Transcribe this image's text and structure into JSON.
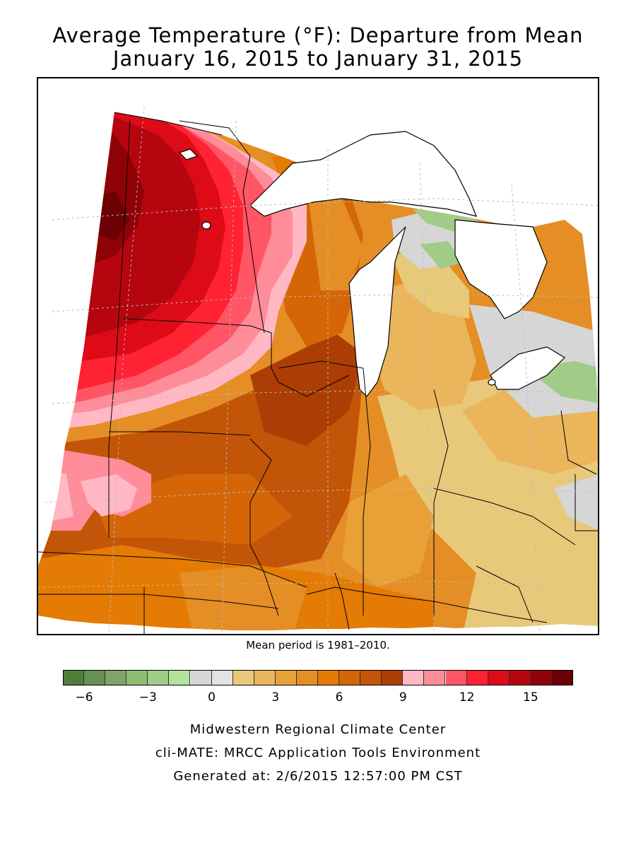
{
  "title_line1": "Average Temperature (°F): Departure from Mean",
  "title_line2": "January 16, 2015 to January 31, 2015",
  "mean_note": "Mean period is 1981–2010.",
  "legend": {
    "colors": [
      "#4f7d3a",
      "#669150",
      "#7ea566",
      "#8ebd75",
      "#a0cc87",
      "#b4e39b",
      "#d6d6d6",
      "#e3e3e3",
      "#e8c97a",
      "#ebb55c",
      "#e9a137",
      "#e58e25",
      "#e47b04",
      "#d56608",
      "#c35508",
      "#ac3d05",
      "#ffb8c4",
      "#ff8c99",
      "#ff5565",
      "#ff2233",
      "#dd0a18",
      "#b5050f",
      "#8e0208",
      "#6b0104"
    ],
    "tick_labels": [
      "−6",
      "−3",
      "0",
      "3",
      "6",
      "9",
      "12",
      "15"
    ]
  },
  "credits": {
    "line1": "Midwestern Regional Climate Center",
    "line2": "cli-MATE: MRCC Application Tools Environment",
    "line3": "Generated at: 2/6/2015 12:57:00 PM CST"
  }
}
